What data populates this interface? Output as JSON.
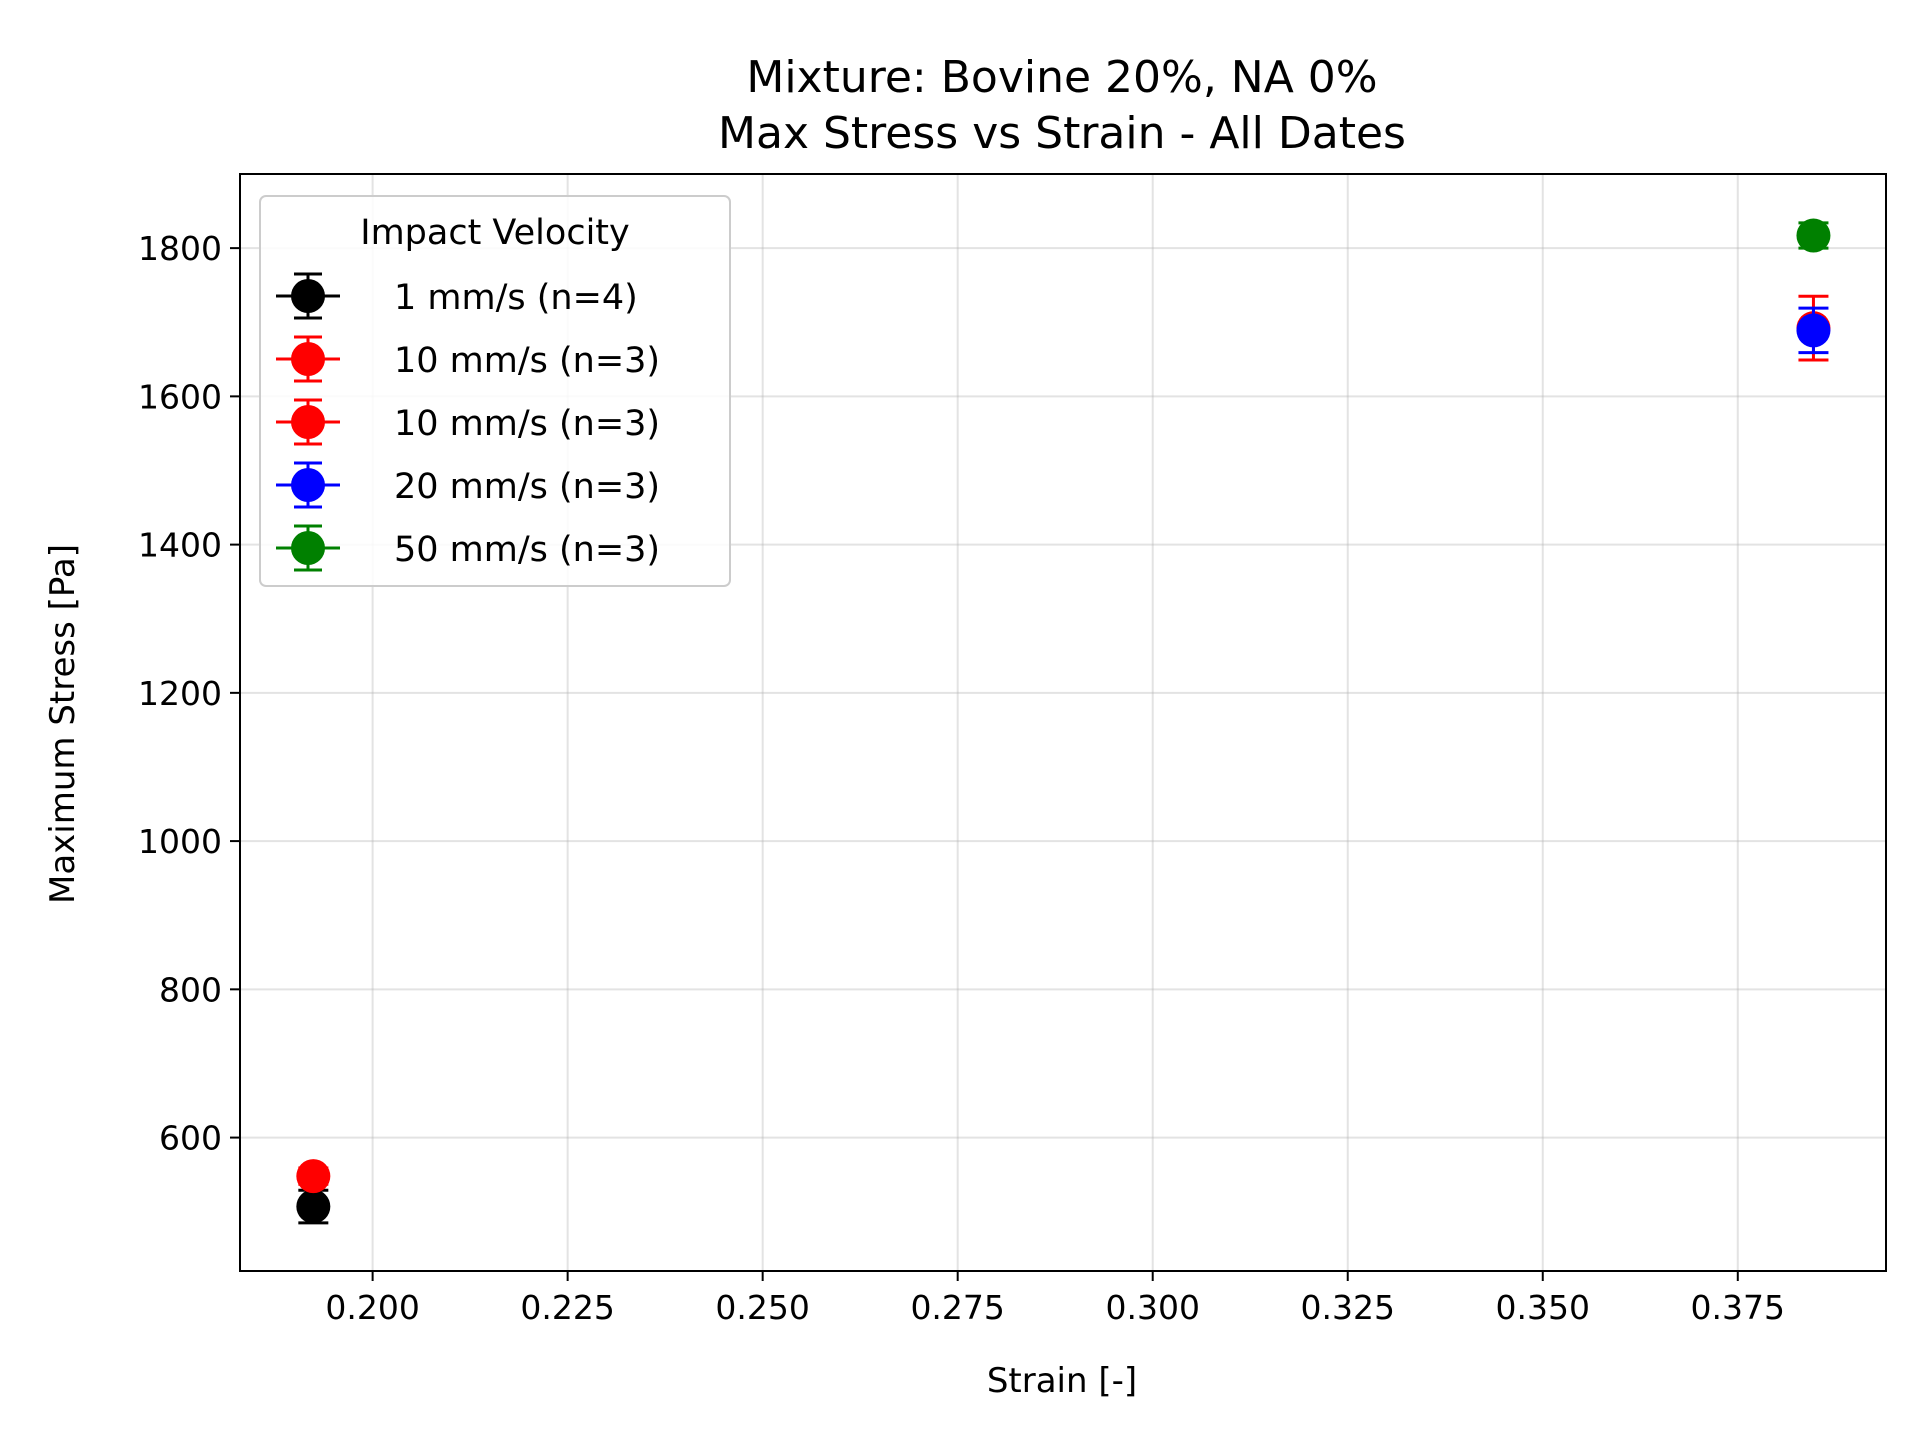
{
  "chart_data": {
    "type": "scatter",
    "title_lines": [
      "Mixture: Bovine 20%, NA 0%",
      "Max Stress vs Strain - All Dates"
    ],
    "xlabel": "Strain [-]",
    "ylabel": "Maximum Stress [Pa]",
    "xlim": [
      0.183,
      0.394
    ],
    "ylim": [
      420,
      1900
    ],
    "xticks": [
      0.2,
      0.225,
      0.25,
      0.275,
      0.3,
      0.325,
      0.35,
      0.375
    ],
    "xtick_labels": [
      "0.200",
      "0.225",
      "0.250",
      "0.275",
      "0.300",
      "0.325",
      "0.350",
      "0.375"
    ],
    "yticks": [
      600,
      800,
      1000,
      1200,
      1400,
      1600,
      1800
    ],
    "ytick_labels": [
      "600",
      "800",
      "1000",
      "1200",
      "1400",
      "1600",
      "1800"
    ],
    "grid": true,
    "legend": {
      "title": "Impact Velocity",
      "placement": "top-left"
    },
    "series": [
      {
        "name": "1 mm/s (n=4)",
        "color": "#000000",
        "points": [
          {
            "x": 0.1924,
            "y": 507,
            "err": 22
          }
        ]
      },
      {
        "name": "10 mm/s (n=3)",
        "color": "#ff0000",
        "points": [
          {
            "x": 0.1924,
            "y": 548,
            "err": 11
          }
        ]
      },
      {
        "name": "10 mm/s (n=3)",
        "color": "#ff0000",
        "points": [
          {
            "x": 0.3847,
            "y": 1692,
            "err": 43
          }
        ]
      },
      {
        "name": "20 mm/s (n=3)",
        "color": "#0000ff",
        "points": [
          {
            "x": 0.3847,
            "y": 1689,
            "err": 30
          }
        ]
      },
      {
        "name": "50 mm/s (n=3)",
        "color": "#008000",
        "points": [
          {
            "x": 0.3847,
            "y": 1817,
            "err": 17
          }
        ]
      }
    ]
  }
}
